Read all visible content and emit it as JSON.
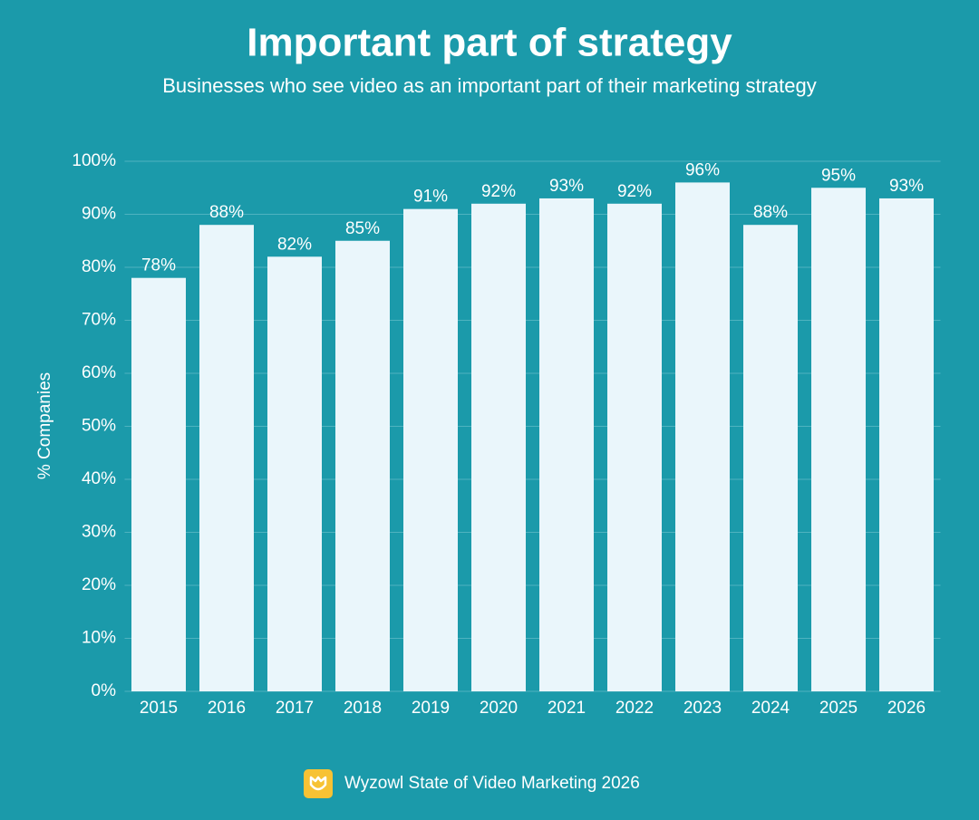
{
  "chart_data": {
    "type": "bar",
    "title": "Important part of strategy",
    "subtitle": "Businesses who see video as an important part of their marketing strategy",
    "y_label": "% Companies",
    "source": "Wyzowl State of Video Marketing 2026",
    "categories": [
      "2015",
      "2016",
      "2017",
      "2018",
      "2019",
      "2020",
      "2021",
      "2022",
      "2023",
      "2024",
      "2025",
      "2026"
    ],
    "values": [
      78,
      88,
      82,
      85,
      91,
      92,
      93,
      92,
      96,
      88,
      95,
      93
    ],
    "value_labels": [
      "78%",
      "88%",
      "82%",
      "85%",
      "91%",
      "92%",
      "93%",
      "92%",
      "96%",
      "88%",
      "95%",
      "93%"
    ],
    "color": "#eaf6fb",
    "ylim": [
      0,
      100
    ],
    "yticks": [
      {
        "value": 0,
        "label": "0%"
      },
      {
        "value": 10,
        "label": "10%"
      },
      {
        "value": 20,
        "label": "20%"
      },
      {
        "value": 30,
        "label": "30%"
      },
      {
        "value": 40,
        "label": "40%"
      },
      {
        "value": 50,
        "label": "50%"
      },
      {
        "value": 60,
        "label": "60%"
      },
      {
        "value": 70,
        "label": "70%"
      },
      {
        "value": 80,
        "label": "80%"
      },
      {
        "value": 90,
        "label": "90%"
      },
      {
        "value": 100,
        "label": "100%"
      }
    ],
    "grid": true
  }
}
